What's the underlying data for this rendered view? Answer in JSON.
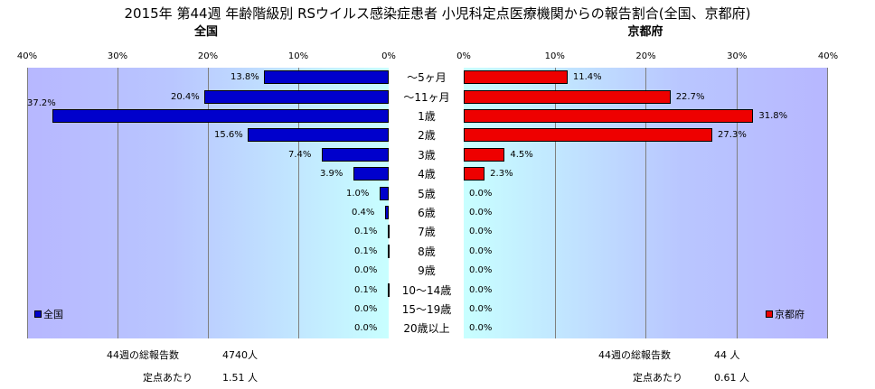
{
  "title": "2015年 第44週 年齢階級別 RSウイルス感染症患者 小児科定点医療機関からの報告割合(全国、京都府)",
  "colors": {
    "national": "#0000cc",
    "kyoto": "#ee0000"
  },
  "chart_data": {
    "type": "bar",
    "orientation": "horizontal",
    "categories": [
      "～5ヶ月",
      "～11ヶ月",
      "1歳",
      "2歳",
      "3歳",
      "4歳",
      "5歳",
      "6歳",
      "7歳",
      "8歳",
      "9歳",
      "10～14歳",
      "15～19歳",
      "20歳以上"
    ],
    "xlim": [
      0,
      40
    ],
    "ticks": [
      "40%",
      "30%",
      "20%",
      "10%",
      "0%"
    ],
    "ticks_right": [
      "0%",
      "10%",
      "20%",
      "30%",
      "40%"
    ],
    "series": [
      {
        "name": "全国",
        "panel_title": "全国",
        "values": [
          13.8,
          20.4,
          37.2,
          15.6,
          7.4,
          3.9,
          1.0,
          0.4,
          0.1,
          0.1,
          0.0,
          0.1,
          0.0,
          0.0
        ],
        "labels": [
          "13.8%",
          "20.4%",
          "37.2%",
          "15.6%",
          "7.4%",
          "3.9%",
          "1.0%",
          "0.4%",
          "0.1%",
          "0.1%",
          "0.0%",
          "0.1%",
          "0.0%",
          "0.0%"
        ]
      },
      {
        "name": "京都府",
        "panel_title": "京都府",
        "values": [
          11.4,
          22.7,
          31.8,
          27.3,
          4.5,
          2.3,
          0.0,
          0.0,
          0.0,
          0.0,
          0.0,
          0.0,
          0.0,
          0.0
        ],
        "labels": [
          "11.4%",
          "22.7%",
          "31.8%",
          "27.3%",
          "4.5%",
          "2.3%",
          "0.0%",
          "0.0%",
          "0.0%",
          "0.0%",
          "0.0%",
          "0.0%",
          "0.0%",
          "0.0%"
        ]
      }
    ]
  },
  "footer": {
    "left_total_label": "44週の総報告数",
    "left_total_value": "4740人",
    "left_per_label": "定点あたり",
    "left_per_value": "1.51 人",
    "right_total_label": "44週の総報告数",
    "right_total_value": "44 人",
    "right_per_label": "定点あたり",
    "right_per_value": "0.61 人"
  }
}
